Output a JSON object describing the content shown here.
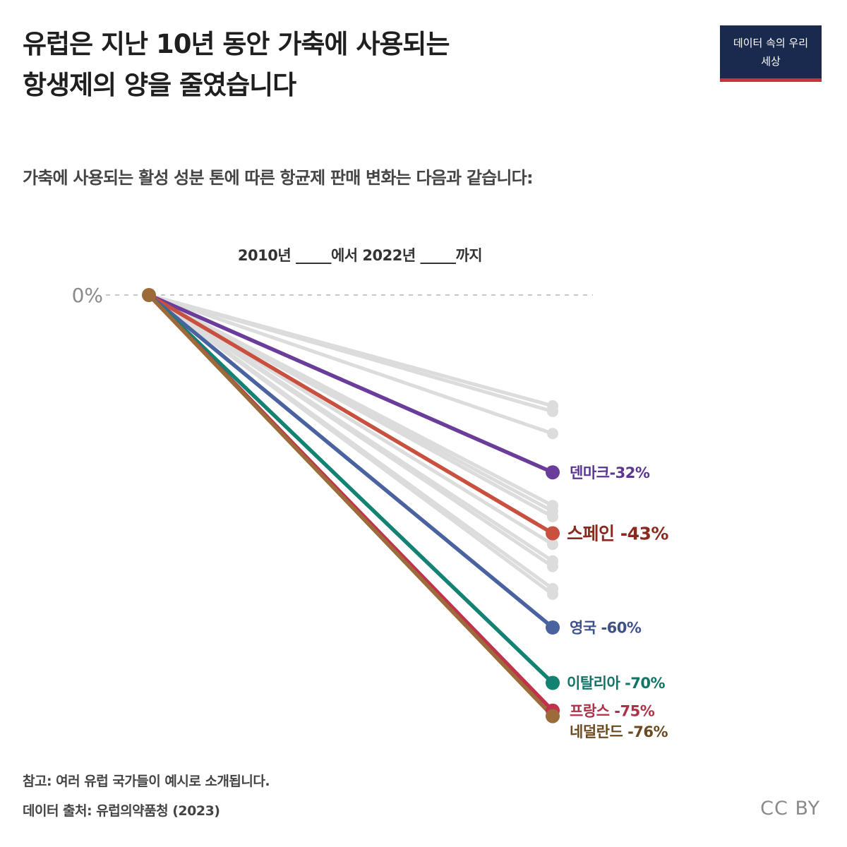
{
  "title": {
    "line1": "유럽은 지난 10년 동안 가축에 사용되는",
    "line2": "항생제의 양을 줄였습니다"
  },
  "subtitle": "가축에 사용되는 활성 성분 톤에 따른 항균제 판매 변화는 다음과 같습니다:",
  "logo": {
    "line1": "데이터 속의 우리",
    "line2": "세상"
  },
  "period_label": "2010년 _____에서 2022년 _____까지",
  "note": "참고: 여러 유럽 국가들이 예시로 소개됩니다.",
  "source": "데이터 출처: 유럽의약품청 (2023)",
  "license": "CC BY",
  "colors": {
    "background_series": "#dcdcdc",
    "denmark": "#6a3d9a",
    "spain": "#c9503f",
    "uk": "#4a63a0",
    "italy": "#138272",
    "france": "#c0334d",
    "netherlands": "#9c6b39"
  },
  "chart_data": {
    "type": "line",
    "title": "",
    "x": [
      "2010",
      "2022"
    ],
    "ylabel": "",
    "ylim": [
      -80,
      0
    ],
    "y_ticks": [
      {
        "value": 0,
        "label": "0%"
      }
    ],
    "grid": false,
    "background_series_end_values": [
      -20,
      -21,
      -25,
      -38,
      -39,
      -40,
      -45,
      -48,
      -49,
      -53,
      -54
    ],
    "series": [
      {
        "name": "덴마크",
        "label": "덴마크-32%",
        "values": [
          0,
          -32
        ],
        "color_key": "denmark",
        "label_color": "#5b3590",
        "label_size": "medium"
      },
      {
        "name": "스페인",
        "label": "스페인 -43%",
        "values": [
          0,
          -43
        ],
        "color_key": "spain",
        "label_color": "#8a2a1f",
        "label_size": "large"
      },
      {
        "name": "영국",
        "label": "영국 -60%",
        "values": [
          0,
          -60
        ],
        "color_key": "uk",
        "label_color": "#3d5289",
        "label_size": "medium"
      },
      {
        "name": "이탈리아",
        "label": "이탈리아 -70%",
        "values": [
          0,
          -70
        ],
        "color_key": "italy",
        "label_color": "#117466",
        "label_size": "medium"
      },
      {
        "name": "프랑스",
        "label": "프랑스 -75%",
        "values": [
          0,
          -75
        ],
        "color_key": "france",
        "label_color": "#b0304a",
        "label_size": "medium"
      },
      {
        "name": "네덜란드",
        "label": "네덜란드 -76%",
        "values": [
          0,
          -76
        ],
        "color_key": "netherlands",
        "label_color": "#6b4a22",
        "label_size": "medium"
      }
    ]
  }
}
